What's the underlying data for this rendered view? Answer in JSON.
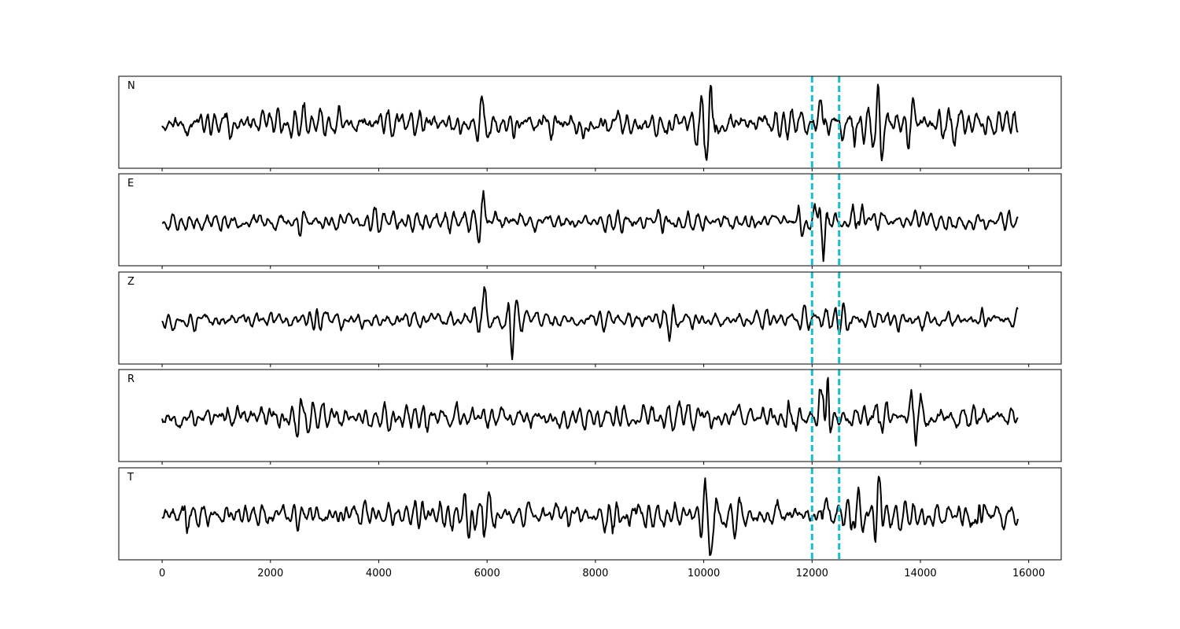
{
  "chart_data": {
    "type": "line",
    "layout": "stacked-panels",
    "title": "",
    "xlabel": "",
    "ylabel": "",
    "xlim": [
      -800,
      16600
    ],
    "x_ticks": [
      0,
      2000,
      4000,
      6000,
      8000,
      10000,
      12000,
      14000,
      16000
    ],
    "x_tick_labels": [
      "0",
      "2000",
      "4000",
      "6000",
      "8000",
      "10000",
      "12000",
      "14000",
      "16000"
    ],
    "x_range": [
      0,
      15800
    ],
    "y_ticks": [],
    "grid": false,
    "legend": "none",
    "colors": {
      "trace": "#000000",
      "markers": "#17becf",
      "frame": "#000000"
    },
    "markers": {
      "style": "dashed-vertical",
      "x": [
        12000,
        12500
      ]
    },
    "panels": [
      {
        "label": "N",
        "seed": 11,
        "base_amp": 0.3,
        "events": [
          {
            "x": 5950,
            "amp": 0.6
          },
          {
            "x": 10050,
            "amp": 0.85
          },
          {
            "x": 10150,
            "amp": 0.7
          },
          {
            "x": 12200,
            "amp": 0.65
          },
          {
            "x": 12800,
            "amp": 0.75
          },
          {
            "x": 13200,
            "amp": 0.95
          },
          {
            "x": 13800,
            "amp": 0.6
          },
          {
            "x": 14600,
            "amp": 0.55
          }
        ]
      },
      {
        "label": "E",
        "seed": 23,
        "base_amp": 0.3,
        "events": [
          {
            "x": 2600,
            "amp": 0.55
          },
          {
            "x": 5950,
            "amp": 0.55
          },
          {
            "x": 11800,
            "amp": 0.55
          },
          {
            "x": 12150,
            "amp": 0.7
          },
          {
            "x": 12250,
            "amp": 0.95
          },
          {
            "x": 12850,
            "amp": 0.75
          },
          {
            "x": 13200,
            "amp": 0.8
          }
        ]
      },
      {
        "label": "Z",
        "seed": 37,
        "base_amp": 0.3,
        "events": [
          {
            "x": 2900,
            "amp": 0.55
          },
          {
            "x": 5850,
            "amp": 0.75
          },
          {
            "x": 5950,
            "amp": 0.95
          },
          {
            "x": 6450,
            "amp": 0.9
          },
          {
            "x": 9400,
            "amp": 0.6
          },
          {
            "x": 12650,
            "amp": 0.55
          },
          {
            "x": 15100,
            "amp": 0.45
          }
        ]
      },
      {
        "label": "R",
        "seed": 53,
        "base_amp": 0.3,
        "events": [
          {
            "x": 2600,
            "amp": 0.55
          },
          {
            "x": 10100,
            "amp": 0.55
          },
          {
            "x": 11600,
            "amp": 0.55
          },
          {
            "x": 12200,
            "amp": 1.0
          },
          {
            "x": 12300,
            "amp": 0.8
          },
          {
            "x": 13200,
            "amp": 0.85
          },
          {
            "x": 13900,
            "amp": 0.55
          }
        ]
      },
      {
        "label": "T",
        "seed": 71,
        "base_amp": 0.3,
        "events": [
          {
            "x": 450,
            "amp": 0.75
          },
          {
            "x": 5650,
            "amp": 0.75
          },
          {
            "x": 5950,
            "amp": 0.8
          },
          {
            "x": 8700,
            "amp": 0.6
          },
          {
            "x": 10000,
            "amp": 0.9
          },
          {
            "x": 10200,
            "amp": 0.8
          },
          {
            "x": 12200,
            "amp": 0.65
          },
          {
            "x": 12800,
            "amp": 0.7
          },
          {
            "x": 13200,
            "amp": 0.9
          },
          {
            "x": 15100,
            "amp": 0.6
          }
        ]
      }
    ]
  }
}
